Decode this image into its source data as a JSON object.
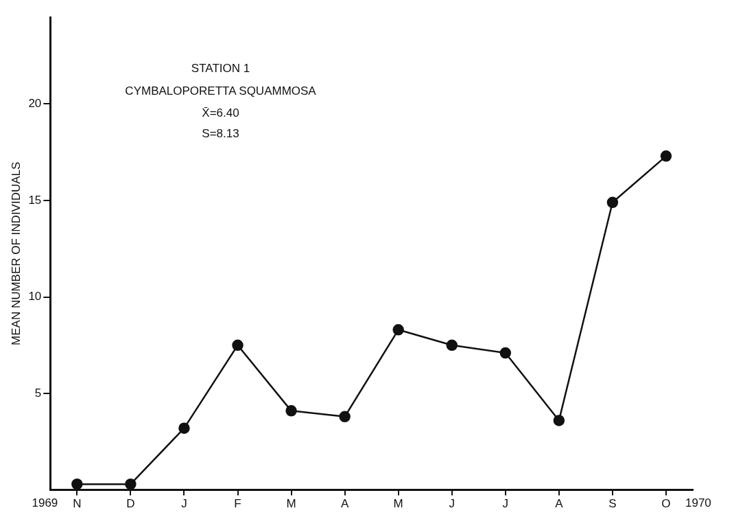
{
  "chart_data": {
    "type": "line",
    "title": "STATION 1",
    "subtitle": "CYMBALOPORETTA SQUAMMOSA",
    "ylabel": "MEAN NUMBER OF INDIVIDUALS",
    "annotations": [
      "X̄=6.40",
      "S=8.13",
      "1969",
      "1970"
    ],
    "categories": [
      "N",
      "D",
      "J",
      "F",
      "M",
      "A",
      "M",
      "J",
      "J",
      "A",
      "S",
      "O"
    ],
    "series": [
      {
        "color": "#111111",
        "values": [
          0.3,
          0.3,
          3.2,
          7.5,
          4.1,
          3.8,
          8.3,
          7.5,
          7.1,
          3.6,
          14.9,
          17.3
        ]
      }
    ],
    "ylim": [
      0,
      24.5
    ],
    "yticks": [
      5,
      10,
      15,
      20
    ],
    "grid": false,
    "legend": false,
    "marker": "circle",
    "line_style": "solid"
  }
}
